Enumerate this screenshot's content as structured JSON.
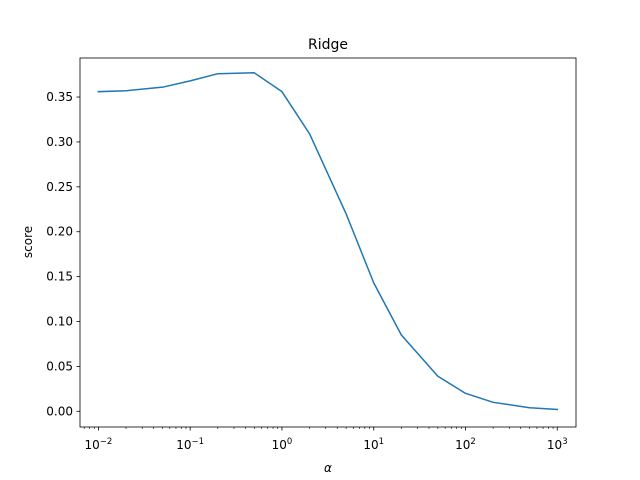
{
  "chart_data": {
    "type": "line",
    "title": "Ridge",
    "xlabel": "α",
    "ylabel": "score",
    "xscale": "log",
    "xlim": [
      0.0063,
      1600
    ],
    "ylim": [
      -0.0175,
      0.3935
    ],
    "grid": false,
    "legend": "none",
    "line_color": "#1f77b4",
    "x_ticks": [
      {
        "value": 0.01,
        "base": "10",
        "exp": "−2"
      },
      {
        "value": 0.1,
        "base": "10",
        "exp": "−1"
      },
      {
        "value": 1,
        "base": "10",
        "exp": "0"
      },
      {
        "value": 10,
        "base": "10",
        "exp": "1"
      },
      {
        "value": 100,
        "base": "10",
        "exp": "2"
      },
      {
        "value": 1000,
        "base": "10",
        "exp": "3"
      }
    ],
    "y_ticks": [
      "0.00",
      "0.05",
      "0.10",
      "0.15",
      "0.20",
      "0.25",
      "0.30",
      "0.35"
    ],
    "series": [
      {
        "x": [
          0.01,
          0.02,
          0.05,
          0.1,
          0.2,
          0.5,
          1,
          2,
          5,
          10,
          20,
          50,
          100,
          200,
          500,
          1000
        ],
        "y": [
          0.356,
          0.357,
          0.361,
          0.368,
          0.376,
          0.377,
          0.356,
          0.309,
          0.22,
          0.143,
          0.085,
          0.039,
          0.02,
          0.01,
          0.004,
          0.002
        ]
      }
    ]
  }
}
